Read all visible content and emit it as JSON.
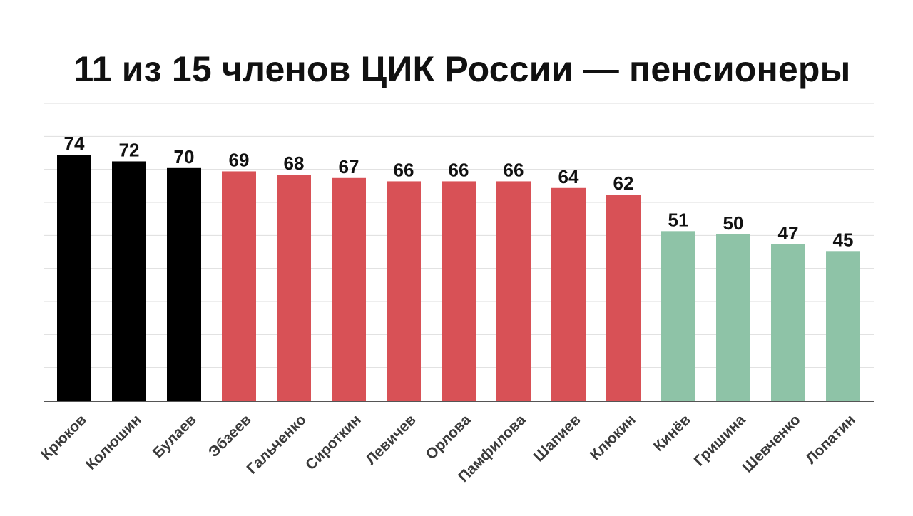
{
  "chart_data": {
    "type": "bar",
    "title": "11 из 15 членов ЦИК России — пенсионеры",
    "xlabel": "",
    "ylabel": "",
    "ylim": [
      0,
      80
    ],
    "grid": true,
    "categories": [
      "Крюков",
      "Колюшин",
      "Булаев",
      "Эбзеев",
      "Гальченко",
      "Сироткин",
      "Левичев",
      "Орлова",
      "Памфилова",
      "Шапиев",
      "Клюкин",
      "Кинёв",
      "Гришина",
      "Шевченко",
      "Лопатин"
    ],
    "values": [
      74,
      72,
      70,
      69,
      68,
      67,
      66,
      66,
      66,
      64,
      62,
      51,
      50,
      47,
      45
    ],
    "colors": [
      "#000000",
      "#000000",
      "#000000",
      "#d85156",
      "#d85156",
      "#d85156",
      "#d85156",
      "#d85156",
      "#d85156",
      "#d85156",
      "#d85156",
      "#8ec3a7",
      "#8ec3a7",
      "#8ec3a7",
      "#8ec3a7"
    ]
  }
}
